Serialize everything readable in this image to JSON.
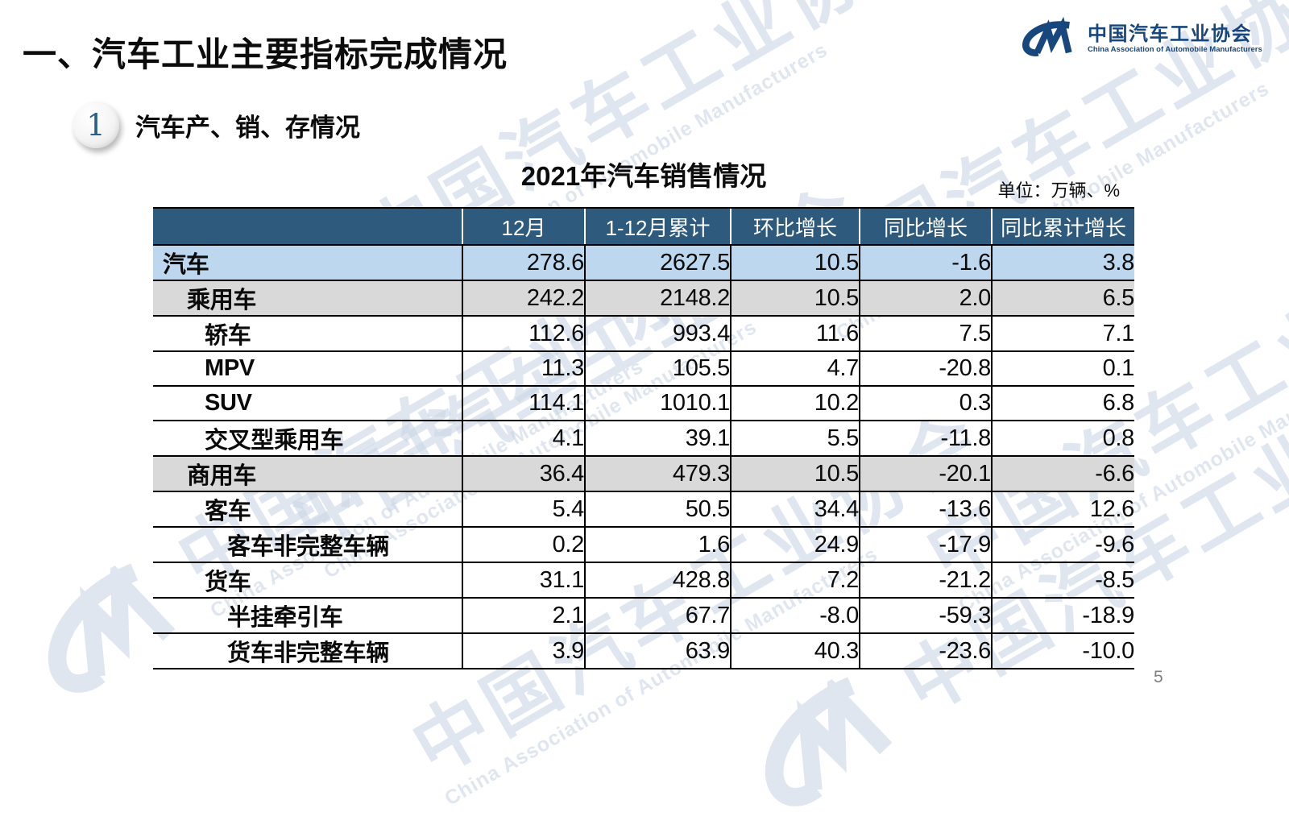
{
  "slide": {
    "heading": "一、汽车工业主要指标完成情况",
    "section_number": "1",
    "section_title": "汽车产、销、存情况",
    "page_number": "5"
  },
  "logo": {
    "cn": "中国汽车工业协会",
    "en": "China Association of Automobile Manufacturers",
    "mark": "cm-monogram",
    "color": "#17477c"
  },
  "watermark": {
    "cn": "中国汽车工业协会",
    "en": "China Association of Automobile Manufacturers",
    "color": "#ccd8e7"
  },
  "table": {
    "title": "2021年汽车销售情况",
    "unit_note": "单位：万辆、%",
    "header_bg": "#2e5b7d",
    "highlight_blue": "#bdd7ee",
    "highlight_gray": "#d9d9d9",
    "columns": [
      "",
      "12月",
      "1-12月累计",
      "环比增长",
      "同比增长",
      "同比累计增长"
    ],
    "rows": [
      {
        "name": "汽车",
        "indent": 0,
        "style": "highlight-blue",
        "values": [
          "278.6",
          "2627.5",
          "10.5",
          "-1.6",
          "3.8"
        ]
      },
      {
        "name": "乘用车",
        "indent": 1,
        "style": "highlight-gray",
        "values": [
          "242.2",
          "2148.2",
          "10.5",
          "2.0",
          "6.5"
        ]
      },
      {
        "name": "轿车",
        "indent": 2,
        "style": "",
        "values": [
          "112.6",
          "993.4",
          "11.6",
          "7.5",
          "7.1"
        ]
      },
      {
        "name": "MPV",
        "indent": 2,
        "style": "",
        "values": [
          "11.3",
          "105.5",
          "4.7",
          "-20.8",
          "0.1"
        ]
      },
      {
        "name": "SUV",
        "indent": 2,
        "style": "",
        "values": [
          "114.1",
          "1010.1",
          "10.2",
          "0.3",
          "6.8"
        ]
      },
      {
        "name": "交叉型乘用车",
        "indent": 2,
        "style": "",
        "values": [
          "4.1",
          "39.1",
          "5.5",
          "-11.8",
          "0.8"
        ]
      },
      {
        "name": "商用车",
        "indent": 1,
        "style": "highlight-gray",
        "values": [
          "36.4",
          "479.3",
          "10.5",
          "-20.1",
          "-6.6"
        ]
      },
      {
        "name": "客车",
        "indent": 2,
        "style": "",
        "values": [
          "5.4",
          "50.5",
          "34.4",
          "-13.6",
          "12.6"
        ]
      },
      {
        "name": "客车非完整车辆",
        "indent": 3,
        "style": "",
        "values": [
          "0.2",
          "1.6",
          "24.9",
          "-17.9",
          "-9.6"
        ]
      },
      {
        "name": "货车",
        "indent": 2,
        "style": "",
        "values": [
          "31.1",
          "428.8",
          "7.2",
          "-21.2",
          "-8.5"
        ]
      },
      {
        "name": "半挂牵引车",
        "indent": 3,
        "style": "",
        "values": [
          "2.1",
          "67.7",
          "-8.0",
          "-59.3",
          "-18.9"
        ]
      },
      {
        "name": "货车非完整车辆",
        "indent": 3,
        "style": "",
        "values": [
          "3.9",
          "63.9",
          "40.3",
          "-23.6",
          "-10.0"
        ]
      }
    ]
  }
}
